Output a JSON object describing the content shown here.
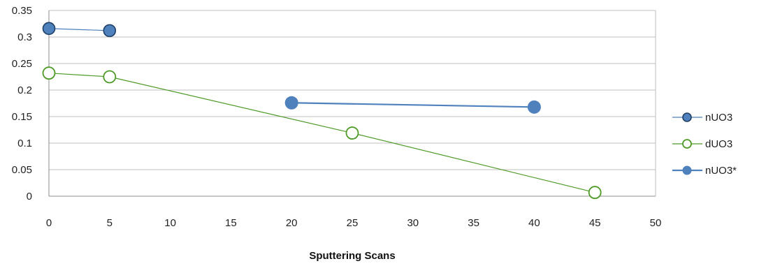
{
  "chart_data": {
    "type": "scatter",
    "xlabel": "Sputtering Scans",
    "ylabel": "",
    "xlim": [
      0,
      50
    ],
    "ylim": [
      0,
      0.35
    ],
    "xticks": [
      0,
      5,
      10,
      15,
      20,
      25,
      30,
      35,
      40,
      45,
      50
    ],
    "yticks": [
      0,
      0.05,
      0.1,
      0.15,
      0.2,
      0.25,
      0.3,
      0.35
    ],
    "grid": "horizontal",
    "legend_position": "right",
    "series": [
      {
        "name": "nUO3",
        "color": "#4f81bd",
        "marker": "filled-circle-outlined",
        "points": [
          {
            "x": 0,
            "y": 0.316
          },
          {
            "x": 5,
            "y": 0.312
          }
        ]
      },
      {
        "name": "dUO3",
        "color": "#4e9a27",
        "marker": "open-circle",
        "points": [
          {
            "x": 0,
            "y": 0.232
          },
          {
            "x": 5,
            "y": 0.225
          },
          {
            "x": 25,
            "y": 0.119
          },
          {
            "x": 45,
            "y": 0.007
          }
        ]
      },
      {
        "name": "nUO3*",
        "color": "#4f81bd",
        "marker": "filled-circle",
        "points": [
          {
            "x": 20,
            "y": 0.176
          },
          {
            "x": 40,
            "y": 0.168
          }
        ]
      }
    ]
  }
}
